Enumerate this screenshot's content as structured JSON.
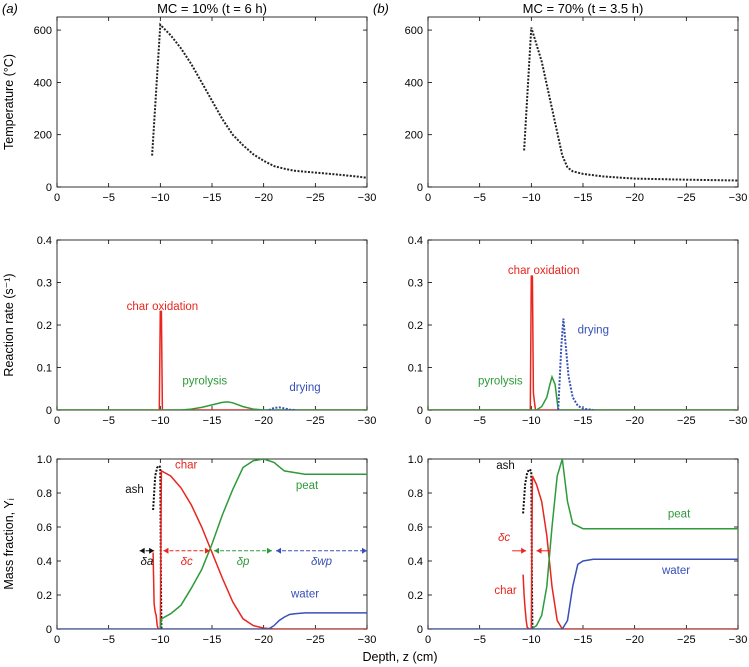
{
  "figure": {
    "colors": {
      "temperature": "#222222",
      "char_oxidation": "#e8251e",
      "pyrolysis": "#2e9a3a",
      "drying": "#3850b8",
      "ash": "#111111",
      "char": "#e8251e",
      "peat": "#2e9a3a",
      "water": "#3850b8"
    }
  },
  "chart_data": [
    {
      "type": "line",
      "panel_letter": "(a)",
      "title": "MC = 10% (t = 6 h)",
      "xlabel": "",
      "ylabel": "Temperature (°C)",
      "xlim": [
        0,
        -30
      ],
      "ylim": [
        0,
        650
      ],
      "xticks": [
        "0",
        "−5",
        "−10",
        "−15",
        "−20",
        "−25",
        "−30"
      ],
      "yticks": [
        "0",
        "200",
        "400",
        "600"
      ],
      "series": [
        {
          "key": "temperature",
          "style": "dotted",
          "x": [
            -9.2,
            -10,
            -11,
            -12,
            -13,
            -14,
            -15,
            -16,
            -17,
            -18,
            -19,
            -20,
            -21,
            -22,
            -23,
            -25,
            -27,
            -29,
            -30
          ],
          "y": [
            120,
            620,
            580,
            530,
            470,
            400,
            330,
            260,
            200,
            160,
            125,
            100,
            80,
            70,
            62,
            55,
            48,
            40,
            35
          ]
        }
      ],
      "annotations": []
    },
    {
      "type": "line",
      "panel_letter": "(b)",
      "title": "MC = 70% (t = 3.5 h)",
      "xlabel": "",
      "ylabel": "",
      "xlim": [
        0,
        -30
      ],
      "ylim": [
        0,
        650
      ],
      "xticks": [
        "0",
        "−5",
        "−10",
        "−15",
        "−20",
        "−25",
        "−30"
      ],
      "yticks": [
        "0",
        "200",
        "400",
        "600"
      ],
      "series": [
        {
          "key": "temperature",
          "style": "dotted",
          "x": [
            -9.3,
            -10,
            -11,
            -12,
            -13,
            -13.5,
            -14,
            -15,
            -17,
            -20,
            -25,
            -30
          ],
          "y": [
            140,
            610,
            480,
            300,
            120,
            75,
            60,
            50,
            40,
            32,
            28,
            25
          ]
        }
      ],
      "annotations": []
    },
    {
      "type": "line",
      "panel_letter": "",
      "title": "",
      "xlabel": "",
      "ylabel": "Reaction rate (s⁻¹)",
      "xlim": [
        0,
        -30
      ],
      "ylim": [
        0,
        0.4
      ],
      "xticks": [
        "0",
        "−5",
        "−10",
        "−15",
        "−20",
        "−25",
        "−30"
      ],
      "yticks": [
        "0",
        "0.1",
        "0.2",
        "0.3",
        "0.4"
      ],
      "series": [
        {
          "key": "char_oxidation",
          "style": "solid",
          "x": [
            0,
            -9.9,
            -10.0,
            -10.1,
            -10.2,
            -30
          ],
          "y": [
            0,
            0,
            0.232,
            0.232,
            0,
            0
          ]
        },
        {
          "key": "pyrolysis",
          "style": "solid",
          "x": [
            0,
            -12,
            -13,
            -14,
            -15,
            -16,
            -16.5,
            -17,
            -18,
            -19,
            -20,
            -30
          ],
          "y": [
            0,
            0,
            0.002,
            0.006,
            0.012,
            0.018,
            0.019,
            0.017,
            0.008,
            0.002,
            0,
            0
          ]
        },
        {
          "key": "drying",
          "style": "dotted",
          "x": [
            -20.5,
            -21,
            -21.5,
            -22,
            -22.5,
            -23
          ],
          "y": [
            0,
            0.005,
            0.006,
            0.004,
            0.001,
            0
          ]
        }
      ],
      "annotations": [
        {
          "text": "char oxidation",
          "x": -10.2,
          "y": 0.235,
          "color": "char_oxidation"
        },
        {
          "text": "pyrolysis",
          "x": -14.3,
          "y": 0.06,
          "color": "pyrolysis"
        },
        {
          "text": "drying",
          "x": -24,
          "y": 0.045,
          "color": "drying"
        }
      ]
    },
    {
      "type": "line",
      "panel_letter": "",
      "title": "",
      "xlabel": "",
      "ylabel": "",
      "xlim": [
        0,
        -30
      ],
      "ylim": [
        0,
        0.4
      ],
      "xticks": [
        "0",
        "−5",
        "−10",
        "−15",
        "−20",
        "−25",
        "−30"
      ],
      "yticks": [
        "0",
        "0.1",
        "0.2",
        "0.3",
        "0.4"
      ],
      "series": [
        {
          "key": "char_oxidation",
          "style": "solid",
          "x": [
            0,
            -9.9,
            -10.0,
            -10.1,
            -10.2,
            -10.3,
            -10.4,
            -30
          ],
          "y": [
            0,
            0,
            0.315,
            0.315,
            0.04,
            0.02,
            0,
            0
          ]
        },
        {
          "key": "pyrolysis",
          "style": "solid",
          "x": [
            0,
            -10.5,
            -11,
            -11.5,
            -11.8,
            -12,
            -12.3,
            -12.6,
            -30
          ],
          "y": [
            0,
            0,
            0.008,
            0.03,
            0.06,
            0.078,
            0.06,
            0,
            0
          ]
        },
        {
          "key": "drying",
          "style": "dotted",
          "x": [
            -12.6,
            -12.9,
            -13.1,
            -13.3,
            -13.6,
            -14,
            -14.5,
            -15,
            -16
          ],
          "y": [
            0,
            0.15,
            0.215,
            0.16,
            0.08,
            0.03,
            0.01,
            0.003,
            0
          ]
        }
      ],
      "annotations": [
        {
          "text": "char oxidation",
          "x": -11.2,
          "y": 0.32,
          "color": "char_oxidation"
        },
        {
          "text": "drying",
          "x": -16,
          "y": 0.18,
          "color": "drying"
        },
        {
          "text": "pyrolysis",
          "x": -7,
          "y": 0.06,
          "color": "pyrolysis"
        }
      ]
    },
    {
      "type": "line",
      "panel_letter": "",
      "title": "",
      "xlabel": "",
      "ylabel": "Mass fraction, Yᵢ",
      "xlim": [
        0,
        -30
      ],
      "ylim": [
        0,
        1.0
      ],
      "xticks": [
        "0",
        "−5",
        "−10",
        "−15",
        "−20",
        "−25",
        "−30"
      ],
      "yticks": [
        "0",
        "0.2",
        "0.4",
        "0.6",
        "0.8",
        "1.0"
      ],
      "series": [
        {
          "key": "ash",
          "style": "dotted",
          "x": [
            -9.3,
            -9.5,
            -9.7,
            -9.9,
            -10.0,
            -10.05,
            -10.1
          ],
          "y": [
            0.7,
            0.9,
            0.95,
            0.96,
            0.95,
            0.3,
            0
          ]
        },
        {
          "key": "char",
          "style": "solid",
          "x": [
            -9.3,
            -9.4,
            -9.5,
            -9.6,
            -9.7,
            -9.8,
            -10.0,
            -10.1,
            -11,
            -12,
            -13,
            -14,
            -15,
            -16,
            -17,
            -18,
            -19,
            -20,
            -21,
            -30
          ],
          "y": [
            0.45,
            0.15,
            0.1,
            0.08,
            0.02,
            0,
            0,
            0.93,
            0.9,
            0.83,
            0.73,
            0.6,
            0.45,
            0.3,
            0.16,
            0.06,
            0.02,
            0.005,
            0,
            0
          ]
        },
        {
          "key": "peat",
          "style": "solid",
          "x": [
            -10.0,
            -10.1,
            -11,
            -12,
            -13,
            -14,
            -15,
            -16,
            -17,
            -18,
            -19,
            -20,
            -21,
            -22,
            -24,
            -26,
            -30
          ],
          "y": [
            0,
            0.06,
            0.09,
            0.14,
            0.24,
            0.35,
            0.5,
            0.67,
            0.82,
            0.95,
            0.99,
            1.0,
            0.98,
            0.93,
            0.91,
            0.91,
            0.91
          ]
        },
        {
          "key": "water",
          "style": "solid",
          "x": [
            0,
            -20.5,
            -21,
            -21.5,
            -22,
            -22.5,
            -23,
            -24,
            -26,
            -30
          ],
          "y": [
            0,
            0,
            0.02,
            0.05,
            0.07,
            0.085,
            0.09,
            0.095,
            0.095,
            0.095
          ]
        }
      ],
      "annotations": [
        {
          "text": "ash",
          "x": -7.5,
          "y": 0.8,
          "color": "ash"
        },
        {
          "text": "char",
          "x": -12.5,
          "y": 0.945,
          "color": "char"
        },
        {
          "text": "peat",
          "x": -24.2,
          "y": 0.825,
          "color": "peat"
        },
        {
          "text": "water",
          "x": -24.0,
          "y": 0.185,
          "color": "water"
        }
      ],
      "zone_labels": [
        {
          "text": "δa",
          "x0": -8,
          "x1": -9.4,
          "y": 0.46,
          "color": "ash"
        },
        {
          "text": "δc",
          "x0": -10.3,
          "x1": -14.8,
          "y": 0.46,
          "color": "char"
        },
        {
          "text": "δp",
          "x0": -15.2,
          "x1": -20.8,
          "y": 0.46,
          "color": "peat"
        },
        {
          "text": "δwp",
          "x0": -21.2,
          "x1": -30,
          "y": 0.46,
          "color": "water"
        }
      ]
    },
    {
      "type": "line",
      "panel_letter": "",
      "title": "",
      "xlabel": "",
      "ylabel": "",
      "xlim": [
        0,
        -30
      ],
      "ylim": [
        0,
        1.0
      ],
      "xticks": [
        "0",
        "−5",
        "−10",
        "−15",
        "−20",
        "−25",
        "−30"
      ],
      "yticks": [
        "0",
        "0.2",
        "0.4",
        "0.6",
        "0.8",
        "1.0"
      ],
      "series": [
        {
          "key": "ash",
          "style": "dotted",
          "x": [
            -9.2,
            -9.4,
            -9.6,
            -9.8,
            -10.0,
            -10.05,
            -10.1
          ],
          "y": [
            0.68,
            0.85,
            0.92,
            0.94,
            0.93,
            0.3,
            0
          ]
        },
        {
          "key": "char",
          "style": "solid",
          "x": [
            -9.2,
            -9.3,
            -9.4,
            -9.5,
            -9.6,
            -9.8,
            -10.0,
            -10.1,
            -10.5,
            -11,
            -11.5,
            -12,
            -12.5,
            -13,
            -30
          ],
          "y": [
            0.32,
            0.2,
            0.12,
            0.05,
            0.01,
            0,
            0,
            0.9,
            0.85,
            0.75,
            0.55,
            0.25,
            0.05,
            0,
            0
          ]
        },
        {
          "key": "peat",
          "style": "solid",
          "x": [
            -10.0,
            -10.5,
            -11,
            -11.5,
            -12,
            -12.5,
            -13,
            -13.5,
            -14,
            -15,
            -20,
            -30
          ],
          "y": [
            0,
            0.02,
            0.08,
            0.25,
            0.6,
            0.9,
            1.0,
            0.75,
            0.62,
            0.59,
            0.59,
            0.59
          ]
        },
        {
          "key": "water",
          "style": "solid",
          "x": [
            0,
            -13,
            -13.5,
            -14,
            -14.5,
            -15,
            -16,
            -20,
            -30
          ],
          "y": [
            0,
            0,
            0.05,
            0.25,
            0.38,
            0.4,
            0.41,
            0.41,
            0.41
          ]
        }
      ],
      "annotations": [
        {
          "text": "ash",
          "x": -7.5,
          "y": 0.94,
          "color": "ash"
        },
        {
          "text": "peat",
          "x": -24.3,
          "y": 0.655,
          "color": "peat"
        },
        {
          "text": "water",
          "x": -24.0,
          "y": 0.325,
          "color": "water"
        },
        {
          "text": "char",
          "x": -7.5,
          "y": 0.205,
          "color": "char"
        }
      ],
      "zone_labels": [
        {
          "text": "δc",
          "x0": -9.5,
          "x1": -10.5,
          "y": 0.46,
          "color": "char",
          "inward": true
        }
      ]
    }
  ],
  "shared_xlabel": "Depth, z (cm)"
}
